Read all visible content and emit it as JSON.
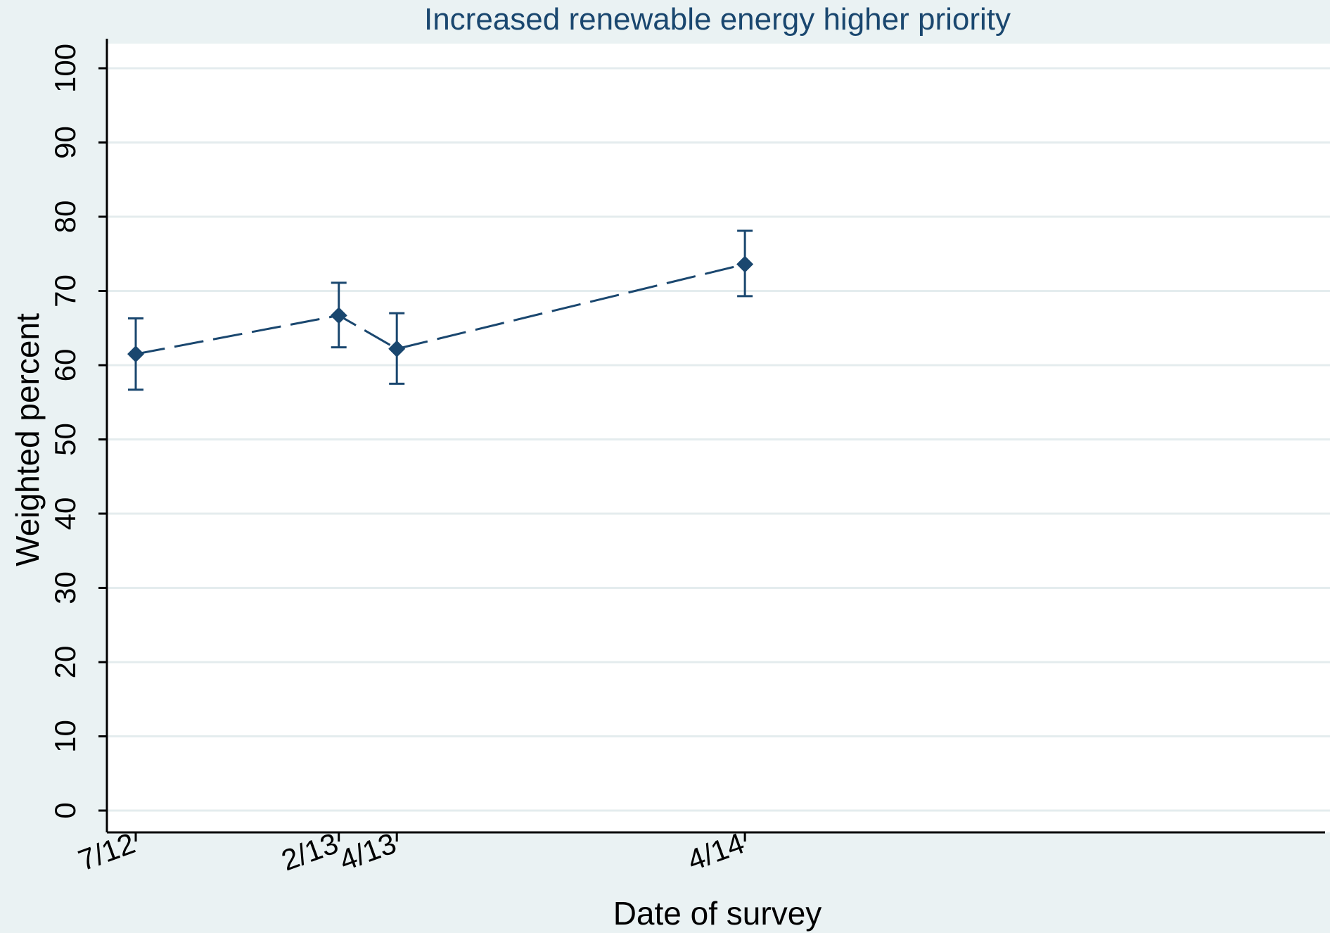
{
  "chart_data": {
    "type": "line",
    "title": "Increased renewable energy higher priority",
    "xlabel": "Date of survey",
    "ylabel": "Weighted percent",
    "x_ticks": [
      "7/12",
      "2/13",
      "4/13",
      "4/14"
    ],
    "x_range": [
      "2012-07",
      "2015-12"
    ],
    "ylim": [
      0,
      100
    ],
    "y_ticks": [
      0,
      10,
      20,
      30,
      40,
      50,
      60,
      70,
      80,
      90,
      100
    ],
    "grid": true,
    "legend": "none",
    "series": [
      {
        "points": [
          {
            "x": "2012-07",
            "label": "7/12",
            "y": 61.5,
            "ci_low": 56.7,
            "ci_high": 66.3
          },
          {
            "x": "2013-02",
            "label": "2/13",
            "y": 66.7,
            "ci_low": 62.4,
            "ci_high": 71.1
          },
          {
            "x": "2013-04",
            "label": "4/13",
            "y": 62.2,
            "ci_low": 57.5,
            "ci_high": 67.0
          },
          {
            "x": "2014-04",
            "label": "4/14",
            "y": 73.6,
            "ci_low": 69.3,
            "ci_high": 78.1
          }
        ]
      }
    ],
    "colors": {
      "background": "#eaf2f3",
      "plot_background": "#ffffff",
      "gridline": "#e4ecee",
      "series": "#1a476f",
      "axis": "#000000"
    }
  }
}
